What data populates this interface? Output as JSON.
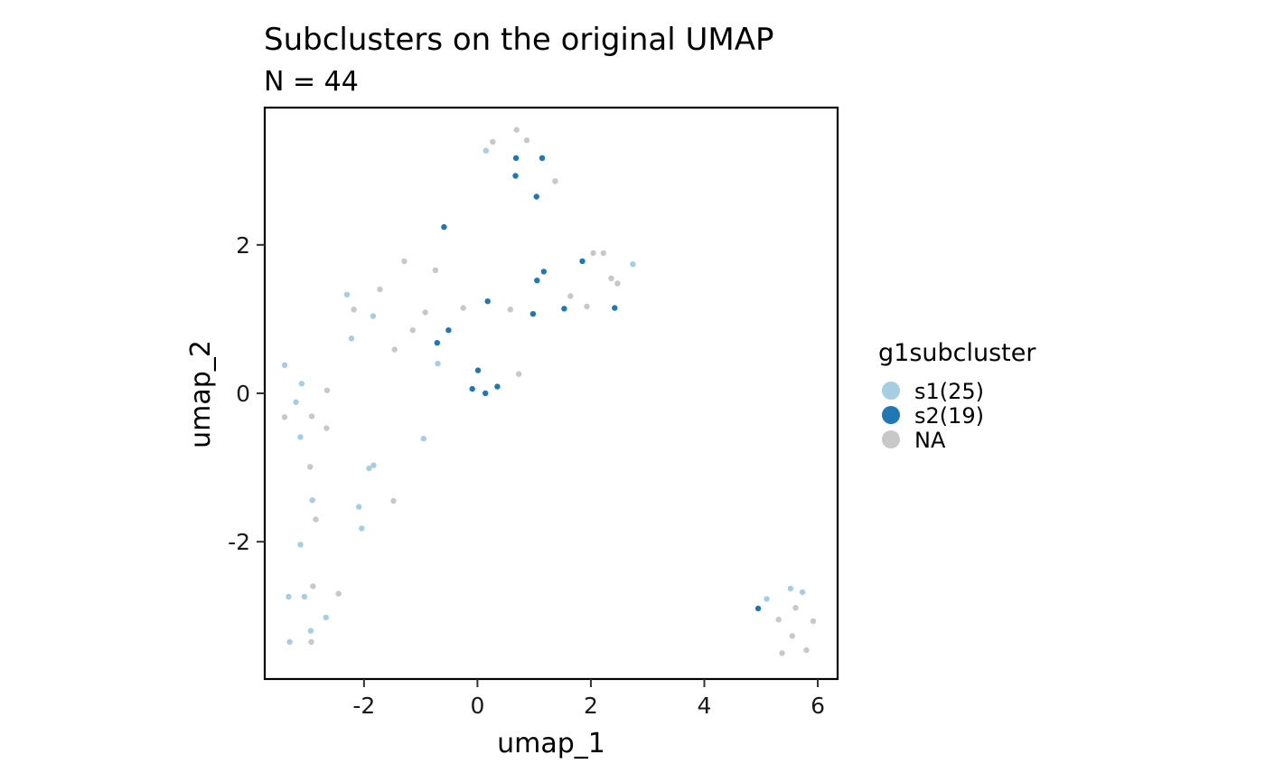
{
  "chart_data": {
    "type": "scatter",
    "title": "Subclusters on the original UMAP",
    "subtitle": "N = 44",
    "xlabel": "umap_1",
    "ylabel": "umap_2",
    "xlim": [
      -3.75,
      6.35
    ],
    "ylim": [
      -3.85,
      3.85
    ],
    "x_ticks": [
      -2,
      0,
      2,
      4,
      6
    ],
    "y_ticks": [
      -2,
      0,
      2
    ],
    "x_tick_labels": [
      "-2",
      "0",
      "2",
      "4",
      "6"
    ],
    "y_tick_labels": [
      "-2",
      "0",
      "2"
    ],
    "grid": false,
    "legend": {
      "title": "g1subcluster",
      "position": "right",
      "entries": [
        {
          "key": "s1",
          "label": "s1(25)",
          "color": "#a6cee3"
        },
        {
          "key": "s2",
          "label": "s2(19)",
          "color": "#1f78b4"
        },
        {
          "key": "NA",
          "label": "NA",
          "color": "#c8c8c8"
        }
      ]
    },
    "series": [
      {
        "key": "s1",
        "color": "#a6cee3",
        "points": [
          [
            0.15,
            3.27
          ],
          [
            -2.3,
            1.33
          ],
          [
            -1.84,
            1.04
          ],
          [
            -2.22,
            0.74
          ],
          [
            -3.4,
            0.38
          ],
          [
            -3.1,
            0.13
          ],
          [
            -3.2,
            -0.12
          ],
          [
            -3.12,
            -0.59
          ],
          [
            -0.95,
            -0.61
          ],
          [
            -1.91,
            -1.01
          ],
          [
            -1.83,
            -0.97
          ],
          [
            -2.09,
            -1.53
          ],
          [
            -2.04,
            -1.82
          ],
          [
            -3.12,
            -2.04
          ],
          [
            -3.33,
            -2.74
          ],
          [
            -3.05,
            -2.74
          ],
          [
            -2.67,
            -3.02
          ],
          [
            -3.31,
            -3.35
          ],
          [
            5.1,
            -2.77
          ],
          [
            5.52,
            -2.63
          ],
          [
            5.73,
            -2.68
          ],
          [
            -2.91,
            -1.44
          ],
          [
            -2.94,
            -3.2
          ],
          [
            2.74,
            1.74
          ],
          [
            -0.7,
            0.4
          ]
        ]
      },
      {
        "key": "s2",
        "color": "#1f78b4",
        "points": [
          [
            0.68,
            3.17
          ],
          [
            1.14,
            3.17
          ],
          [
            0.67,
            2.93
          ],
          [
            1.04,
            2.65
          ],
          [
            -0.59,
            2.24
          ],
          [
            1.85,
            1.78
          ],
          [
            1.17,
            1.64
          ],
          [
            1.05,
            1.52
          ],
          [
            0.18,
            1.24
          ],
          [
            0.98,
            1.07
          ],
          [
            1.53,
            1.14
          ],
          [
            2.42,
            1.15
          ],
          [
            -0.51,
            0.85
          ],
          [
            -0.71,
            0.68
          ],
          [
            0.01,
            0.31
          ],
          [
            -0.09,
            0.06
          ],
          [
            0.35,
            0.09
          ],
          [
            0.14,
            0.0
          ],
          [
            4.95,
            -2.9
          ]
        ]
      },
      {
        "key": "NA",
        "color": "#c8c8c8",
        "points": [
          [
            0.69,
            3.55
          ],
          [
            0.87,
            3.41
          ],
          [
            0.27,
            3.39
          ],
          [
            1.37,
            2.86
          ],
          [
            2.04,
            1.89
          ],
          [
            2.22,
            1.89
          ],
          [
            -1.29,
            1.78
          ],
          [
            -0.74,
            1.66
          ],
          [
            2.36,
            1.55
          ],
          [
            2.47,
            1.48
          ],
          [
            -1.72,
            1.4
          ],
          [
            1.64,
            1.31
          ],
          [
            -2.18,
            1.13
          ],
          [
            -0.25,
            1.15
          ],
          [
            0.58,
            1.13
          ],
          [
            1.93,
            1.17
          ],
          [
            -0.92,
            1.09
          ],
          [
            -1.14,
            0.85
          ],
          [
            -1.46,
            0.59
          ],
          [
            0.73,
            0.26
          ],
          [
            -2.65,
            0.04
          ],
          [
            -3.4,
            -0.32
          ],
          [
            -2.92,
            -0.31
          ],
          [
            -2.66,
            -0.47
          ],
          [
            -2.95,
            -0.99
          ],
          [
            -1.48,
            -1.45
          ],
          [
            -2.85,
            -1.7
          ],
          [
            -2.9,
            -2.6
          ],
          [
            -2.45,
            -2.7
          ],
          [
            -2.93,
            -3.35
          ],
          [
            5.31,
            -3.05
          ],
          [
            5.61,
            -2.89
          ],
          [
            5.92,
            -3.07
          ],
          [
            5.55,
            -3.27
          ],
          [
            5.8,
            -3.46
          ],
          [
            5.37,
            -3.5
          ]
        ]
      }
    ]
  }
}
